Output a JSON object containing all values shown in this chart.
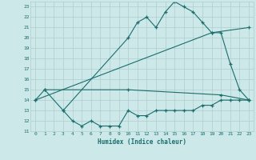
{
  "title": "",
  "xlabel": "Humidex (Indice chaleur)",
  "bg_color": "#cce8e8",
  "grid_color": "#b0cccc",
  "line_color": "#1a6e6e",
  "xlim": [
    -0.5,
    23.5
  ],
  "ylim": [
    11,
    23.5
  ],
  "yticks": [
    11,
    12,
    13,
    14,
    15,
    16,
    17,
    18,
    19,
    20,
    21,
    22,
    23
  ],
  "xticks": [
    0,
    1,
    2,
    3,
    4,
    5,
    6,
    7,
    8,
    9,
    10,
    11,
    12,
    13,
    14,
    15,
    16,
    17,
    18,
    19,
    20,
    21,
    22,
    23
  ],
  "series": [
    {
      "x": [
        0,
        1,
        3,
        10,
        11,
        12,
        13,
        14,
        15,
        16,
        17,
        18,
        19,
        20,
        21,
        22,
        23
      ],
      "y": [
        14,
        15,
        13,
        20,
        21.5,
        22,
        21,
        22.5,
        23.5,
        23,
        22.5,
        21.5,
        20.5,
        20.5,
        17.5,
        15,
        14
      ]
    },
    {
      "x": [
        0,
        19,
        23
      ],
      "y": [
        14,
        20.5,
        21
      ]
    },
    {
      "x": [
        1,
        10,
        20,
        23
      ],
      "y": [
        15,
        15,
        14.5,
        14
      ]
    },
    {
      "x": [
        3,
        4,
        5,
        6,
        7,
        8,
        9,
        10,
        11,
        12,
        13,
        14,
        15,
        16,
        17,
        18,
        19,
        20,
        21,
        22,
        23
      ],
      "y": [
        13,
        12,
        11.5,
        12,
        11.5,
        11.5,
        11.5,
        13,
        12.5,
        12.5,
        13,
        13,
        13,
        13,
        13,
        13.5,
        13.5,
        14,
        14,
        14,
        14
      ]
    }
  ]
}
